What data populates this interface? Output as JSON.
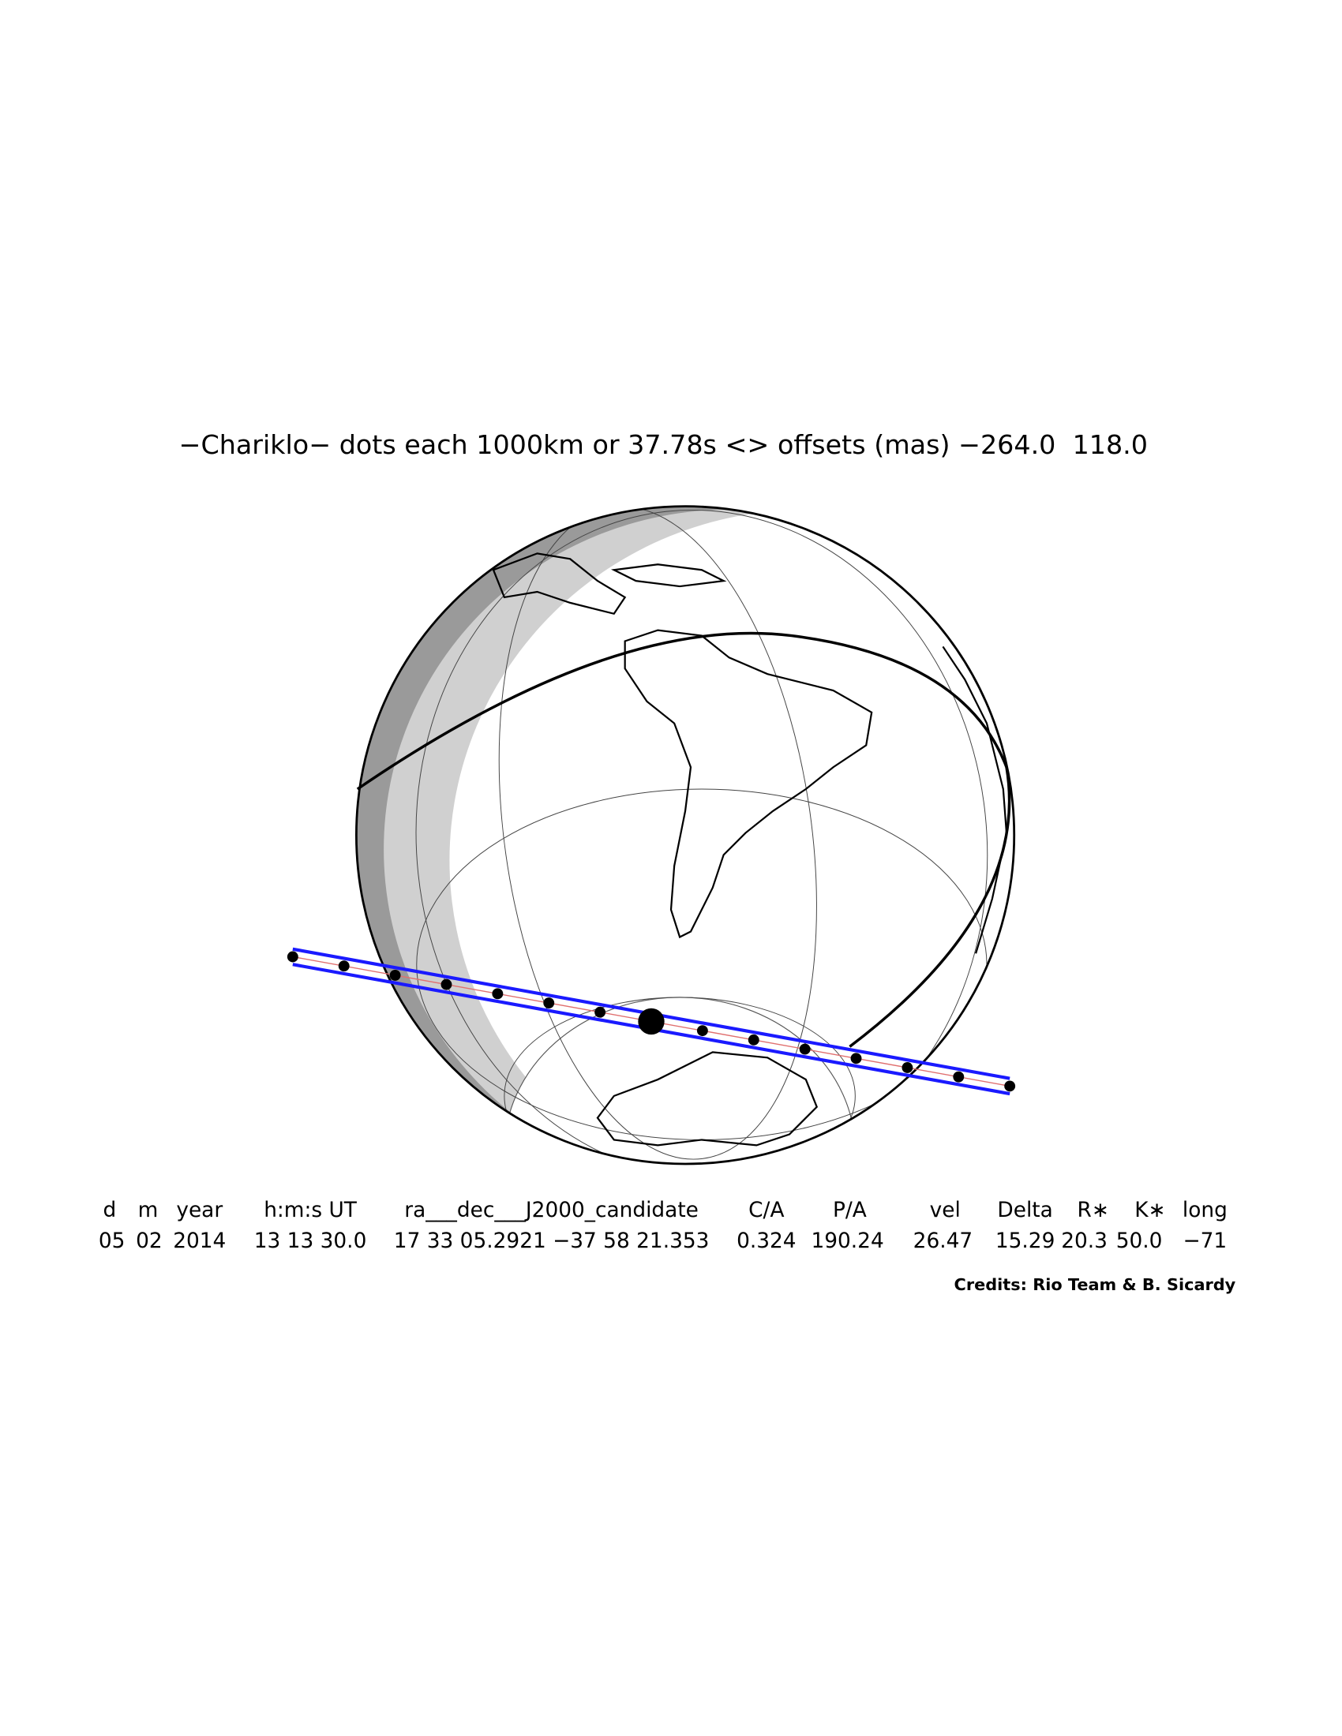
{
  "title": "−Chariklo− dots each 1000km or 37.78s <> offsets (mas) −264.0  118.0",
  "table": {
    "header": [
      "d",
      "m",
      "year",
      "h:m:s UT",
      "ra___dec___J2000_candidate",
      "C/A",
      "P/A",
      "vel",
      "Delta",
      "R∗",
      "K∗",
      "long"
    ],
    "rows": [
      [
        "05",
        "02",
        "2014",
        "13 13 30.0",
        "17 33 05.2921  −37 58 21.353",
        "0.324",
        "190.24",
        "26.47",
        "15.29",
        "20.3",
        "50.0",
        "−71"
      ]
    ]
  },
  "credits": "Credits: Rio Team & B. Sicardy"
}
